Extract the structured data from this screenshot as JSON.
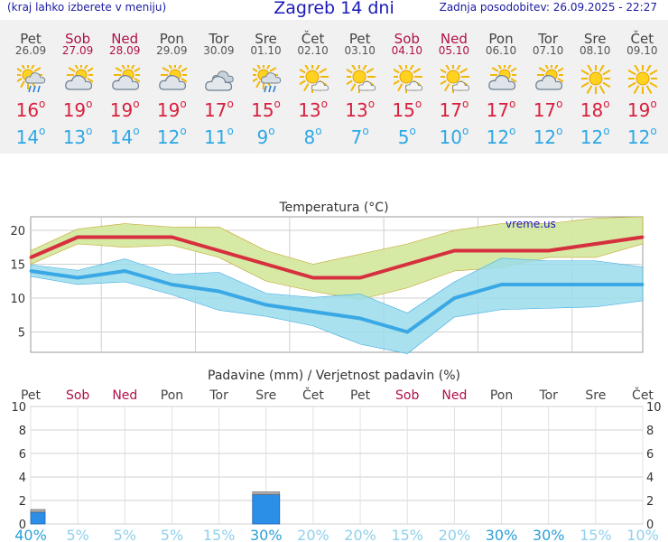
{
  "header": {
    "hint": "(kraj lahko izberete v meniju)",
    "title": "Zagreb 14 dni",
    "updated": "Zadnja posodobitev: 26.09.2025 - 22:27"
  },
  "days": [
    {
      "name": "Pet",
      "date": "26.09",
      "weekend": false,
      "icon": "rain-sun-icon",
      "max": "16",
      "min": "14"
    },
    {
      "name": "Sob",
      "date": "27.09",
      "weekend": true,
      "icon": "partly-cloudy-icon",
      "max": "19",
      "min": "13"
    },
    {
      "name": "Ned",
      "date": "28.09",
      "weekend": true,
      "icon": "partly-cloudy-icon",
      "max": "19",
      "min": "14"
    },
    {
      "name": "Pon",
      "date": "29.09",
      "weekend": false,
      "icon": "partly-cloudy-icon",
      "max": "19",
      "min": "12"
    },
    {
      "name": "Tor",
      "date": "30.09",
      "weekend": false,
      "icon": "cloudy-icon",
      "max": "17",
      "min": "11"
    },
    {
      "name": "Sre",
      "date": "01.10",
      "weekend": false,
      "icon": "rain-sun-icon",
      "max": "15",
      "min": "9"
    },
    {
      "name": "Čet",
      "date": "02.10",
      "weekend": false,
      "icon": "sun-small-cloud-icon",
      "max": "13",
      "min": "8"
    },
    {
      "name": "Pet",
      "date": "03.10",
      "weekend": false,
      "icon": "sun-small-cloud-icon",
      "max": "13",
      "min": "7"
    },
    {
      "name": "Sob",
      "date": "04.10",
      "weekend": true,
      "icon": "sun-small-cloud-icon",
      "max": "15",
      "min": "5"
    },
    {
      "name": "Ned",
      "date": "05.10",
      "weekend": true,
      "icon": "sun-small-cloud-icon",
      "max": "17",
      "min": "10"
    },
    {
      "name": "Pon",
      "date": "06.10",
      "weekend": false,
      "icon": "partly-cloudy-icon",
      "max": "17",
      "min": "12"
    },
    {
      "name": "Tor",
      "date": "07.10",
      "weekend": false,
      "icon": "partly-cloudy-icon",
      "max": "17",
      "min": "12"
    },
    {
      "name": "Sre",
      "date": "08.10",
      "weekend": false,
      "icon": "sun-icon",
      "max": "18",
      "min": "12"
    },
    {
      "name": "Čet",
      "date": "09.10",
      "weekend": false,
      "icon": "sun-icon",
      "max": "19",
      "min": "12"
    }
  ],
  "chart_data": [
    {
      "type": "line",
      "title": "Temperatura (°C)",
      "watermark": "vreme.us",
      "categories": [
        "26.09",
        "27.09",
        "28.09",
        "29.09",
        "30.09",
        "01.10",
        "02.10",
        "03.10",
        "04.10",
        "05.10",
        "06.10",
        "07.10",
        "08.10",
        "09.10"
      ],
      "ylim": [
        2,
        22
      ],
      "yticks": [
        5,
        10,
        15,
        20
      ],
      "series": [
        {
          "values": [
            16,
            19,
            19,
            19,
            17,
            15,
            13,
            13,
            15,
            17,
            17,
            17,
            18,
            19
          ],
          "color": "#d6303e"
        },
        {
          "values": [
            14,
            13,
            14,
            12,
            11,
            9,
            8,
            7,
            5,
            10,
            12,
            12,
            12,
            12
          ],
          "color": "#3aa8e4"
        }
      ],
      "bands": [
        {
          "low": [
            15,
            18,
            17.5,
            17.8,
            16,
            12.5,
            11,
            9.8,
            11.5,
            14,
            14.5,
            16,
            16,
            18
          ],
          "high": [
            17,
            20.2,
            21,
            20.5,
            20.5,
            17,
            15,
            16.5,
            18,
            20,
            21,
            21,
            21.8,
            22
          ],
          "color": "#d4e8a0"
        },
        {
          "low": [
            13.2,
            12,
            12.4,
            10.5,
            8.2,
            7.3,
            5.9,
            3.2,
            1.8,
            7.2,
            8.3,
            8.5,
            8.7,
            9.6
          ],
          "high": [
            14.9,
            14.1,
            15.8,
            13.5,
            13.8,
            10.7,
            10.1,
            10.6,
            7.8,
            12.4,
            15.9,
            15.5,
            15.5,
            14.6
          ],
          "color": "#9adceb"
        }
      ],
      "grid": true
    },
    {
      "type": "bar",
      "title": "Padavine (mm) / Verjetnost padavin (%)",
      "categories": [
        "Pet",
        "Sob",
        "Ned",
        "Pon",
        "Tor",
        "Sre",
        "Čet",
        "Pet",
        "Sob",
        "Ned",
        "Pon",
        "Tor",
        "Sre",
        "Čet"
      ],
      "weekend": [
        false,
        true,
        true,
        false,
        false,
        false,
        false,
        false,
        true,
        true,
        false,
        false,
        false,
        false
      ],
      "ylim": [
        0,
        10
      ],
      "yticks": [
        0,
        2,
        4,
        6,
        8,
        10
      ],
      "values": [
        1.0,
        0,
        0,
        0,
        0,
        2.5,
        0,
        0,
        0,
        0,
        0,
        0,
        0,
        0
      ],
      "probability": [
        "40%",
        "5%",
        "5%",
        "5%",
        "15%",
        "30%",
        "20%",
        "20%",
        "15%",
        "20%",
        "30%",
        "30%",
        "15%",
        "10%"
      ],
      "color": "#2b8fe8",
      "grid": true
    }
  ],
  "colors": {
    "title": "#1a1ab8",
    "max": "#d8203e",
    "min": "#2da8e6",
    "weekend": "#b0104a",
    "precip": "#2b8fe8"
  }
}
